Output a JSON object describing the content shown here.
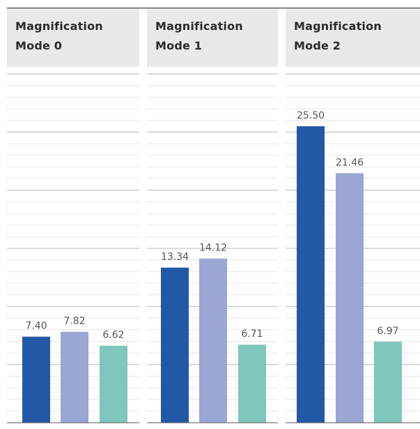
{
  "chart_data": {
    "type": "bar",
    "panels": [
      {
        "title": [
          "Magnification",
          "Mode 0"
        ],
        "values": [
          7.4,
          7.82,
          6.62
        ],
        "labels": [
          "7.40",
          "7.82",
          "6.62"
        ]
      },
      {
        "title": [
          "Magnification",
          "Mode 1"
        ],
        "values": [
          13.34,
          14.12,
          6.71
        ],
        "labels": [
          "13.34",
          "14.12",
          "6.71"
        ]
      },
      {
        "title": [
          "Magnification",
          "Mode 2"
        ],
        "values": [
          25.5,
          21.46,
          6.97
        ],
        "labels": [
          "25.50",
          "21.46",
          "6.97"
        ]
      }
    ],
    "series_colors": [
      "#2358a6",
      "#9aa6d4",
      "#7fc6bc"
    ],
    "ylim": [
      0,
      30
    ],
    "grid": true,
    "grid_step_minor": 1,
    "grid_step_major": 5
  }
}
